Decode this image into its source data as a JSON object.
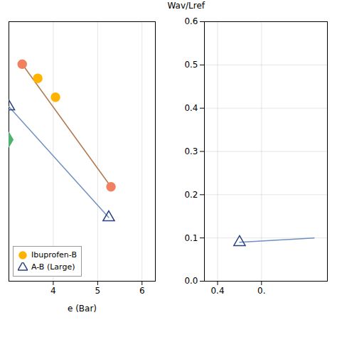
{
  "chart_data": [
    {
      "type": "scatter",
      "xlabel": "e (Bar)",
      "xlim": [
        3.0,
        6.3
      ],
      "ylim": [
        0.3,
        0.85
      ],
      "xticks": [
        4,
        5,
        6
      ],
      "grid": true,
      "tick_labels": "x",
      "legend": "lower left",
      "series": [
        {
          "type": "line",
          "color": "#b07850",
          "x": [
            3.3,
            5.3
          ],
          "values": [
            0.76,
            0.5
          ]
        },
        {
          "name": "Ibuprofen-B",
          "type": "scatter",
          "marker": "circle",
          "color": "#FFB300",
          "colors": [
            "#f08060",
            "#FFB300",
            "#FFB300",
            "#f08060"
          ],
          "x": [
            3.3,
            3.65,
            4.05,
            5.3
          ],
          "values": [
            0.76,
            0.73,
            0.69,
            0.5
          ]
        },
        {
          "type": "line",
          "color": "#7090c0",
          "x": [
            3.0,
            5.25
          ],
          "values": [
            0.67,
            0.435
          ]
        },
        {
          "name": "A-B (Large)",
          "type": "scatter",
          "marker": "open_triangle",
          "color": "#2a4080",
          "x": [
            3.0,
            5.25
          ],
          "values": [
            0.67,
            0.435
          ]
        },
        {
          "type": "scatter",
          "marker": "diamond",
          "color": "#50b070",
          "x": [
            3.0
          ],
          "values": [
            0.6
          ]
        }
      ]
    },
    {
      "type": "scatter",
      "ylabel": "Wav/Lref",
      "xlim": [
        0.37,
        0.65
      ],
      "ylim": [
        0.0,
        0.6
      ],
      "xticks": [
        0.4,
        {
          "value": 0.5,
          "label": "0."
        }
      ],
      "yticks": [
        {
          "value": 0.0,
          "label": "0.0"
        },
        0.1,
        0.2,
        0.3,
        0.4,
        0.5,
        0.6
      ],
      "grid": true,
      "series": [
        {
          "type": "line",
          "color": "#7090c0",
          "x": [
            0.45,
            0.62
          ],
          "values": [
            0.09,
            0.1
          ]
        },
        {
          "type": "scatter",
          "marker": "open_triangle",
          "color": "#2a4080",
          "x": [
            0.45
          ],
          "values": [
            0.09
          ]
        }
      ]
    }
  ]
}
